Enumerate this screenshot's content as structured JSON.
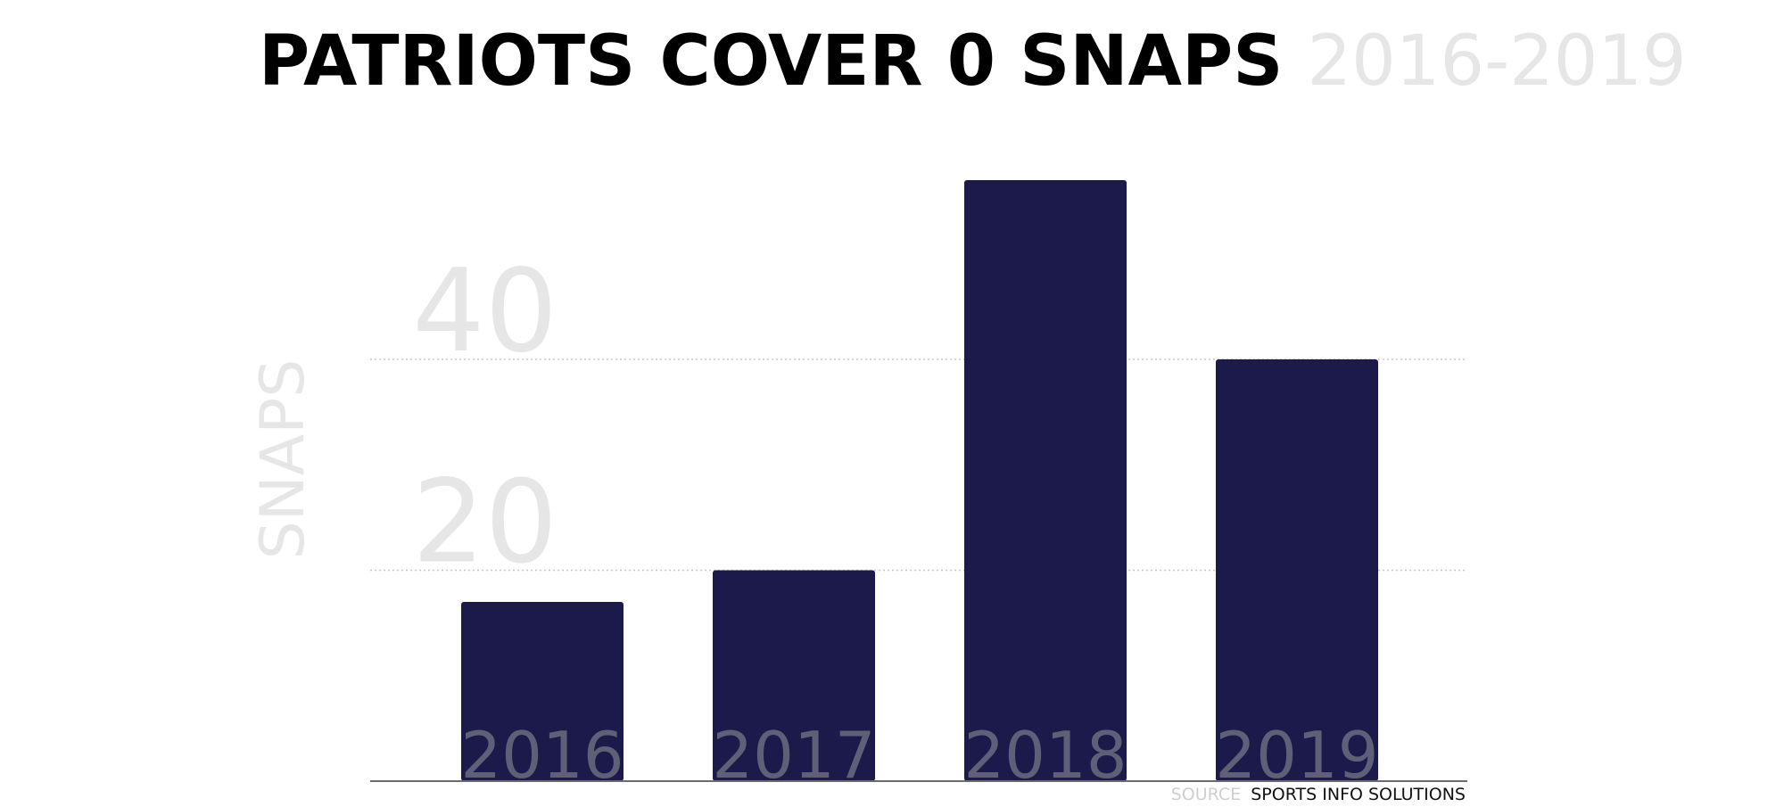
{
  "chart_data": {
    "type": "bar",
    "title": "PATRIOTS COVER 0 SNAPS",
    "subtitle": "2016-2019",
    "ylabel": "SNAPS",
    "xlabel": "",
    "categories": [
      "2016",
      "2017",
      "2018",
      "2019"
    ],
    "values": [
      17,
      20,
      57,
      40
    ],
    "ylim": [
      0,
      57
    ],
    "yticks": [
      20,
      40
    ],
    "grid": true,
    "gridline_style": "dotted",
    "legend": "none",
    "colors": {
      "bar": "#1c1a4b",
      "category_label": "#5f6078",
      "tick_label": "#e6e6e6",
      "axis_label": "#e6e6e6",
      "gridline": "#c8c8c8",
      "baseline": "#6b6b6b",
      "title": "#000000",
      "subtitle": "#e6e6e6"
    }
  },
  "source": {
    "label": "SOURCE",
    "value": "SPORTS INFO SOLUTIONS"
  }
}
